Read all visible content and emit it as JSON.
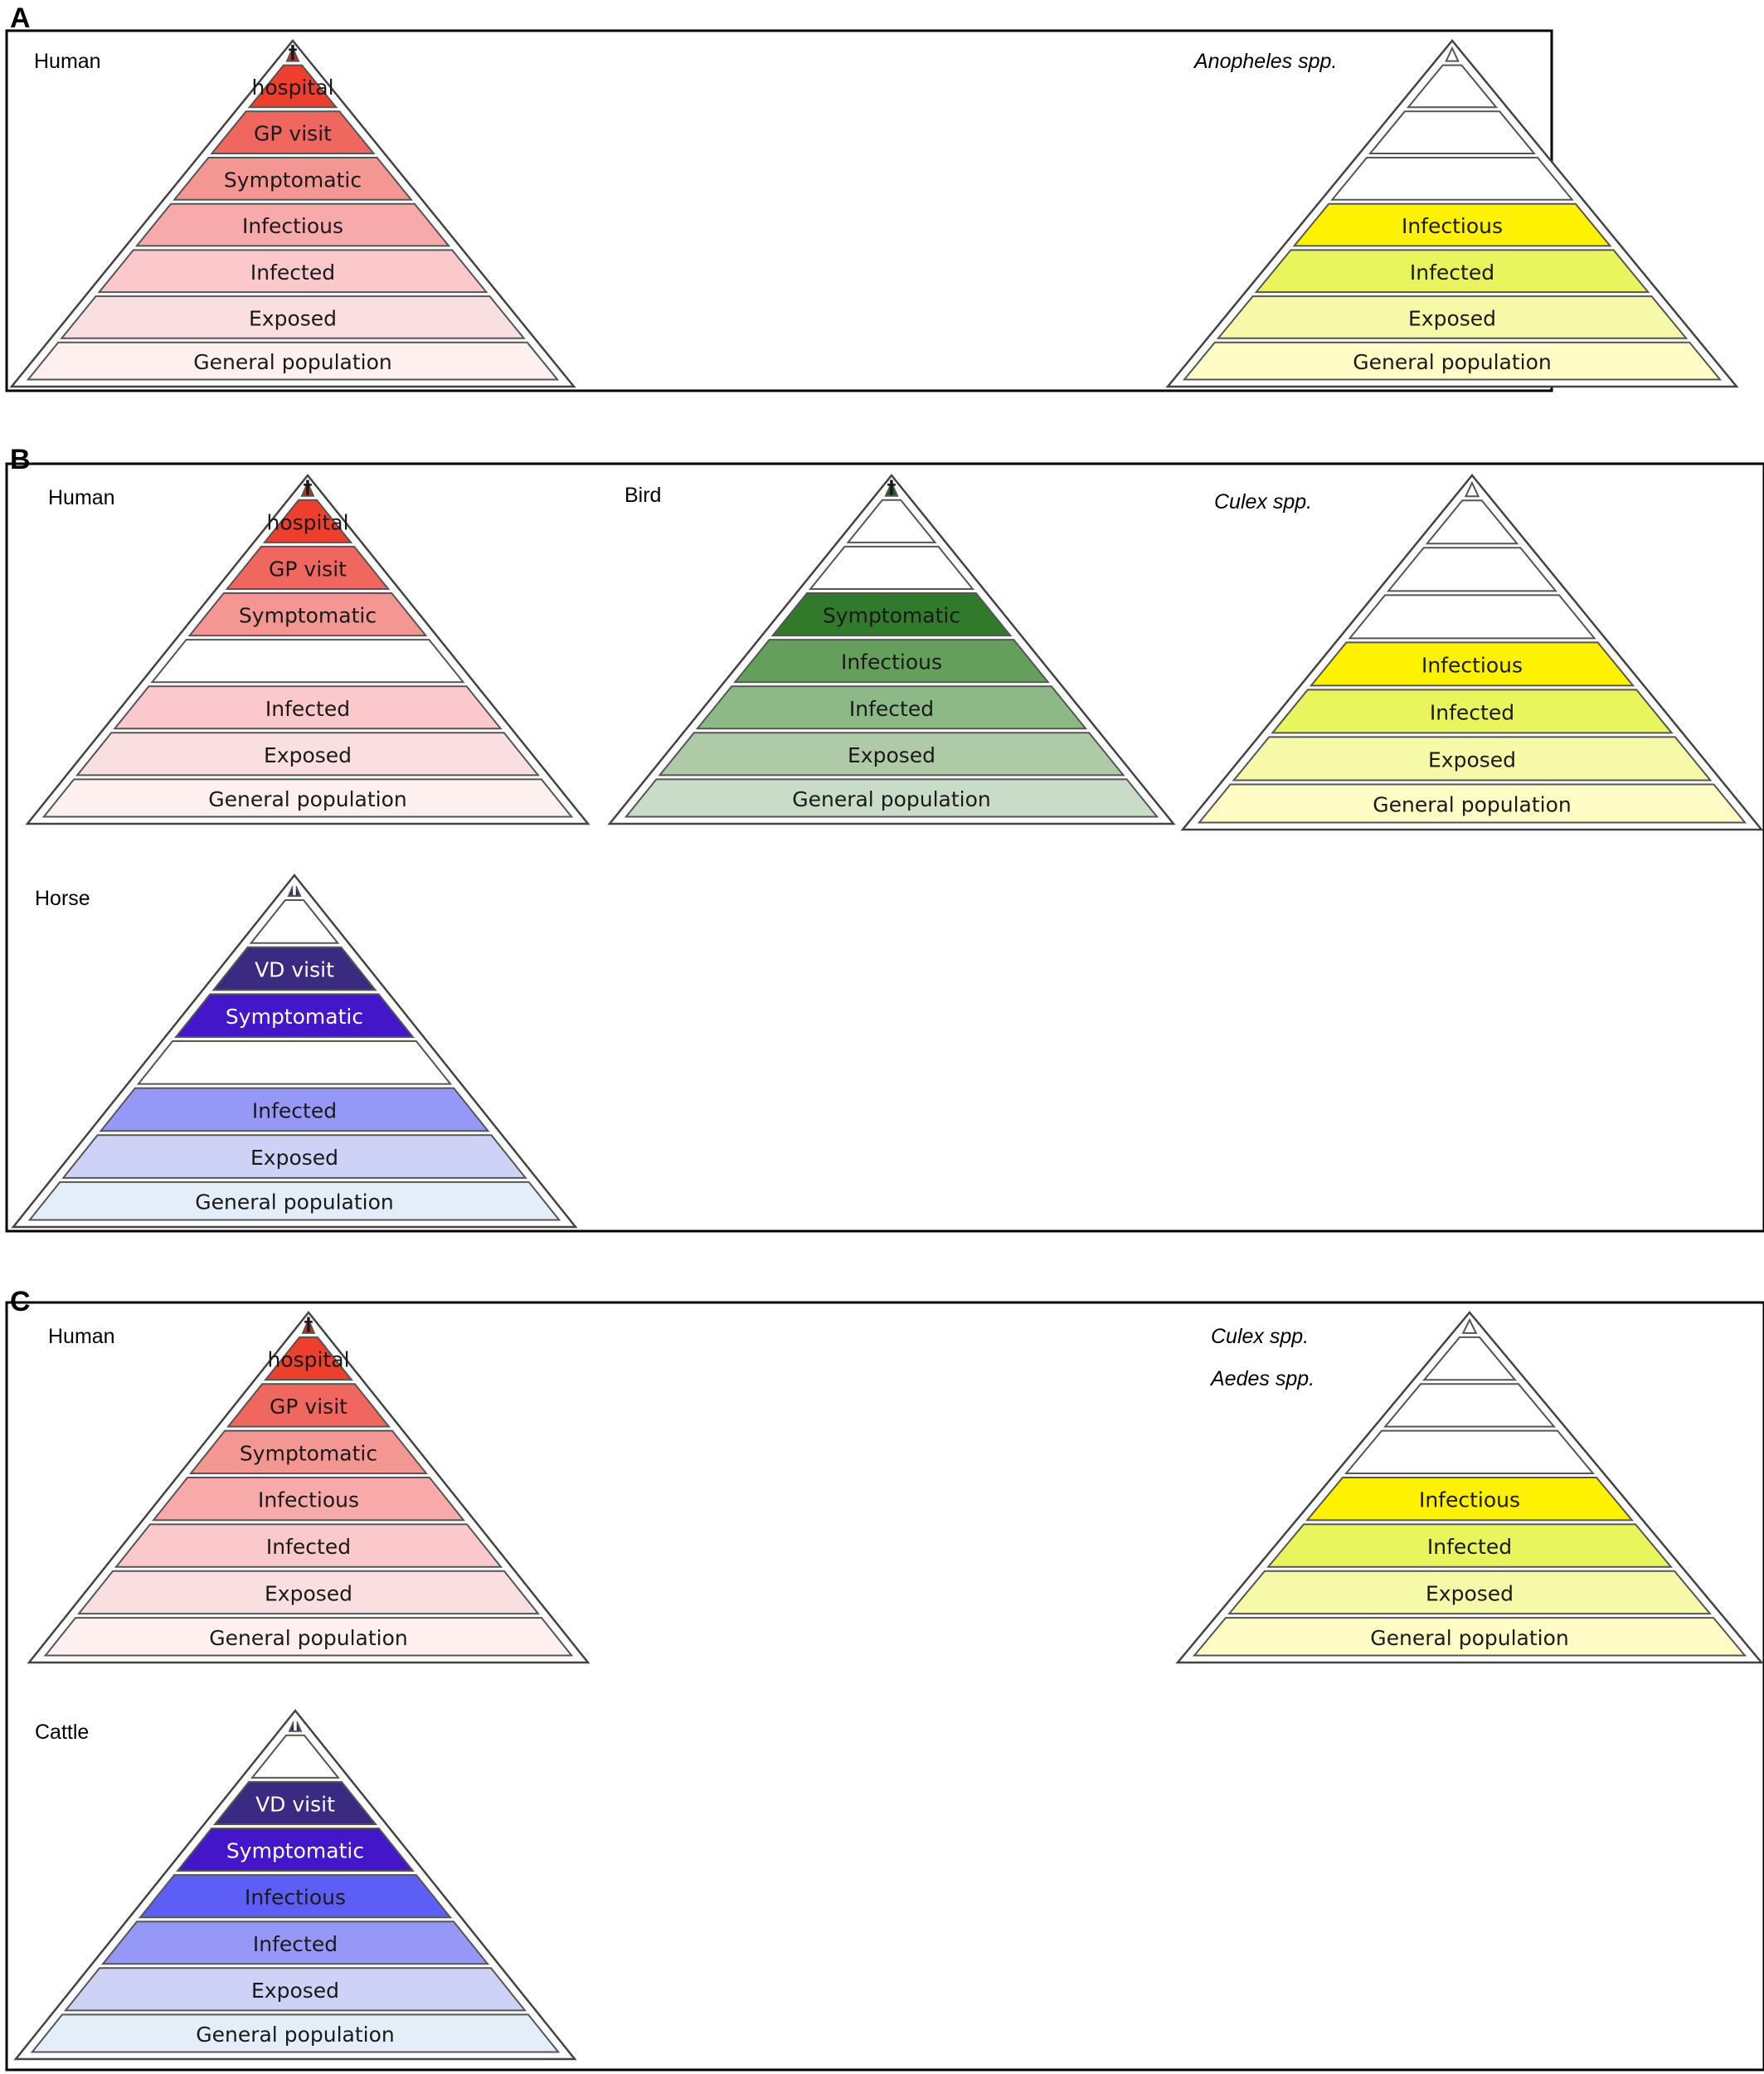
{
  "colors": {
    "human": [
      "#fff0f0",
      "#f9dfe0",
      "#fbc9cb",
      "#f7aaa9",
      "#f49691",
      "#f0675f",
      "#ee3e2d",
      "#d62515"
    ],
    "vector": [
      "#fffdc5",
      "#f5f9a8",
      "#e9f55c",
      "#fff200"
    ],
    "bird": [
      "#c9dcc8",
      "#aecaa6",
      "#8db987",
      "#659f5c",
      "#317a2c",
      "#1a5e1a"
    ],
    "horse": [
      "#e3eef8",
      "#ced2f7",
      "#9598f6",
      "#4316c9",
      "#3b2a82",
      "#2c2670"
    ],
    "cattle": [
      "#e3eef8",
      "#ced2f7",
      "#9598f6",
      "#5c5ef6",
      "#4316c9",
      "#3b2a82",
      "#2c2670"
    ],
    "white": "#ffffff",
    "outline": "#555555"
  },
  "panels": [
    {
      "letter": "A",
      "pyramids": [
        {
          "species": "Human",
          "italic": false,
          "levels": [
            {
              "label": "General population",
              "fill": "#fff0f0",
              "text_color": "#1a1a1a"
            },
            {
              "label": "Exposed",
              "fill": "#f9dfe0",
              "text_color": "#1a1a1a"
            },
            {
              "label": "Infected",
              "fill": "#fbc9cb",
              "text_color": "#1a1a1a"
            },
            {
              "label": "Infectious",
              "fill": "#f7aaa9",
              "text_color": "#1a1a1a"
            },
            {
              "label": "Symptomatic",
              "fill": "#f49691",
              "text_color": "#1a1a1a"
            },
            {
              "label": "GP visit",
              "fill": "#f0675f",
              "text_color": "#1a1a1a"
            },
            {
              "label": "hospital",
              "fill": "#ee3e2d",
              "text_color": "#1a1a1a"
            },
            {
              "label": "†",
              "fill": "#d62515",
              "text_color": "#1a1a1a",
              "apex": true
            }
          ]
        },
        {
          "species": "Anopheles spp.",
          "italic": true,
          "levels": [
            {
              "label": "General population",
              "fill": "#fffdc5",
              "text_color": "#1a1a1a"
            },
            {
              "label": "Exposed",
              "fill": "#f5f9a8",
              "text_color": "#1a1a1a"
            },
            {
              "label": "Infected",
              "fill": "#e9f55c",
              "text_color": "#1a1a1a"
            },
            {
              "label": "Infectious",
              "fill": "#fff200",
              "text_color": "#1a1a1a"
            },
            {
              "label": "",
              "fill": "#ffffff"
            },
            {
              "label": "",
              "fill": "#ffffff"
            },
            {
              "label": "",
              "fill": "#ffffff"
            },
            {
              "label": "",
              "fill": "#ffffff",
              "apex": true
            }
          ]
        }
      ]
    },
    {
      "letter": "B",
      "pyramids": [
        {
          "species": "Human",
          "italic": false,
          "levels": [
            {
              "label": "General population",
              "fill": "#fff0f0",
              "text_color": "#1a1a1a"
            },
            {
              "label": "Exposed",
              "fill": "#f9dfe0",
              "text_color": "#1a1a1a"
            },
            {
              "label": "Infected",
              "fill": "#fbc9cb",
              "text_color": "#1a1a1a"
            },
            {
              "label": "",
              "fill": "#ffffff"
            },
            {
              "label": "Symptomatic",
              "fill": "#f49691",
              "text_color": "#1a1a1a"
            },
            {
              "label": "GP visit",
              "fill": "#f0675f",
              "text_color": "#1a1a1a"
            },
            {
              "label": "hospital",
              "fill": "#ee3e2d",
              "text_color": "#1a1a1a"
            },
            {
              "label": "†",
              "fill": "#d62515",
              "text_color": "#1a1a1a",
              "apex": true
            }
          ]
        },
        {
          "species": "Bird",
          "italic": false,
          "levels": [
            {
              "label": "General population",
              "fill": "#c9dcc8",
              "text_color": "#1a1a1a"
            },
            {
              "label": "Exposed",
              "fill": "#aecaa6",
              "text_color": "#1a1a1a"
            },
            {
              "label": "Infected",
              "fill": "#8db987",
              "text_color": "#1a1a1a"
            },
            {
              "label": "Infectious",
              "fill": "#659f5c",
              "text_color": "#1a1a1a"
            },
            {
              "label": "Symptomatic",
              "fill": "#317a2c",
              "text_color": "#1a1a1a"
            },
            {
              "label": "",
              "fill": "#ffffff"
            },
            {
              "label": "",
              "fill": "#ffffff"
            },
            {
              "label": "†",
              "fill": "#1a5e1a",
              "text_color": "#1a1a1a",
              "apex": true
            }
          ]
        },
        {
          "species": "Culex spp.",
          "italic": true,
          "levels": [
            {
              "label": "General population",
              "fill": "#fffdc5",
              "text_color": "#1a1a1a"
            },
            {
              "label": "Exposed",
              "fill": "#f5f9a8",
              "text_color": "#1a1a1a"
            },
            {
              "label": "Infected",
              "fill": "#e9f55c",
              "text_color": "#1a1a1a"
            },
            {
              "label": "Infectious",
              "fill": "#fff200",
              "text_color": "#1a1a1a"
            },
            {
              "label": "",
              "fill": "#ffffff"
            },
            {
              "label": "",
              "fill": "#ffffff"
            },
            {
              "label": "",
              "fill": "#ffffff"
            },
            {
              "label": "",
              "fill": "#ffffff",
              "apex": true
            }
          ]
        },
        {
          "species": "Horse",
          "italic": false,
          "levels": [
            {
              "label": "General population",
              "fill": "#e3eef8",
              "text_color": "#1a1a1a"
            },
            {
              "label": "Exposed",
              "fill": "#ced2f7",
              "text_color": "#1a1a1a"
            },
            {
              "label": "Infected",
              "fill": "#9598f6",
              "text_color": "#1a1a1a"
            },
            {
              "label": "",
              "fill": "#ffffff"
            },
            {
              "label": "Symptomatic",
              "fill": "#4316c9",
              "text_color": "#ffffff"
            },
            {
              "label": "VD visit",
              "fill": "#3b2a82",
              "text_color": "#ffffff"
            },
            {
              "label": "",
              "fill": "#ffffff"
            },
            {
              "label": "†",
              "fill": "#2c2670",
              "text_color": "#ffffff",
              "apex": true
            }
          ]
        }
      ]
    },
    {
      "letter": "C",
      "pyramids": [
        {
          "species": "Human",
          "italic": false,
          "levels": [
            {
              "label": "General population",
              "fill": "#fff0f0",
              "text_color": "#1a1a1a"
            },
            {
              "label": "Exposed",
              "fill": "#f9dfe0",
              "text_color": "#1a1a1a"
            },
            {
              "label": "Infected",
              "fill": "#fbc9cb",
              "text_color": "#1a1a1a"
            },
            {
              "label": "Infectious",
              "fill": "#f7aaa9",
              "text_color": "#1a1a1a"
            },
            {
              "label": "Symptomatic",
              "fill": "#f49691",
              "text_color": "#1a1a1a"
            },
            {
              "label": "GP visit",
              "fill": "#f0675f",
              "text_color": "#1a1a1a"
            },
            {
              "label": "hospital",
              "fill": "#ee3e2d",
              "text_color": "#1a1a1a"
            },
            {
              "label": "†",
              "fill": "#d62515",
              "text_color": "#1a1a1a",
              "apex": true
            }
          ]
        },
        {
          "species": "Culex spp.",
          "species2": "Aedes spp.",
          "italic": true,
          "levels": [
            {
              "label": "General population",
              "fill": "#fffdc5",
              "text_color": "#1a1a1a"
            },
            {
              "label": "Exposed",
              "fill": "#f5f9a8",
              "text_color": "#1a1a1a"
            },
            {
              "label": "Infected",
              "fill": "#e9f55c",
              "text_color": "#1a1a1a"
            },
            {
              "label": "Infectious",
              "fill": "#fff200",
              "text_color": "#1a1a1a"
            },
            {
              "label": "",
              "fill": "#ffffff"
            },
            {
              "label": "",
              "fill": "#ffffff"
            },
            {
              "label": "",
              "fill": "#ffffff"
            },
            {
              "label": "",
              "fill": "#ffffff",
              "apex": true
            }
          ]
        },
        {
          "species": "Cattle",
          "italic": false,
          "levels": [
            {
              "label": "General population",
              "fill": "#e3eef8",
              "text_color": "#1a1a1a"
            },
            {
              "label": "Exposed",
              "fill": "#ced2f7",
              "text_color": "#1a1a1a"
            },
            {
              "label": "Infected",
              "fill": "#9598f6",
              "text_color": "#1a1a1a"
            },
            {
              "label": "Infectious",
              "fill": "#5c5ef6",
              "text_color": "#1a1a1a"
            },
            {
              "label": "Symptomatic",
              "fill": "#4316c9",
              "text_color": "#ffffff"
            },
            {
              "label": "VD visit",
              "fill": "#3b2a82",
              "text_color": "#ffffff"
            },
            {
              "label": "",
              "fill": "#ffffff"
            },
            {
              "label": "†",
              "fill": "#2c2670",
              "text_color": "#ffffff",
              "apex": true
            }
          ]
        }
      ]
    }
  ]
}
